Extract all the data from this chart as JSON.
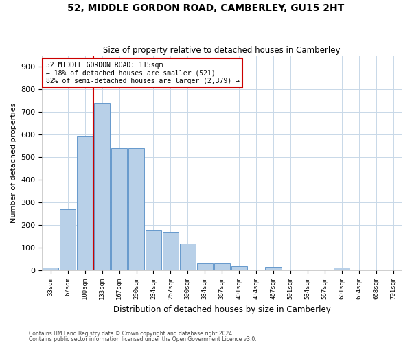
{
  "title": "52, MIDDLE GORDON ROAD, CAMBERLEY, GU15 2HT",
  "subtitle": "Size of property relative to detached houses in Camberley",
  "xlabel": "Distribution of detached houses by size in Camberley",
  "ylabel": "Number of detached properties",
  "bar_labels": [
    "33sqm",
    "67sqm",
    "100sqm",
    "133sqm",
    "167sqm",
    "200sqm",
    "234sqm",
    "267sqm",
    "300sqm",
    "334sqm",
    "367sqm",
    "401sqm",
    "434sqm",
    "467sqm",
    "501sqm",
    "534sqm",
    "567sqm",
    "601sqm",
    "634sqm",
    "668sqm",
    "701sqm"
  ],
  "bar_heights": [
    13,
    270,
    595,
    740,
    540,
    540,
    175,
    170,
    120,
    30,
    30,
    20,
    0,
    15,
    0,
    0,
    0,
    12,
    0,
    0,
    0
  ],
  "bar_color": "#b8d0e8",
  "bar_edgecolor": "#6699cc",
  "bar_linewidth": 0.7,
  "vline_color": "#cc0000",
  "annotation_text": "52 MIDDLE GORDON ROAD: 115sqm\n← 18% of detached houses are smaller (521)\n82% of semi-detached houses are larger (2,379) →",
  "annotation_box_color": "#ffffff",
  "annotation_box_edgecolor": "#cc0000",
  "ylim": [
    0,
    950
  ],
  "yticks": [
    0,
    100,
    200,
    300,
    400,
    500,
    600,
    700,
    800,
    900
  ],
  "footer1": "Contains HM Land Registry data © Crown copyright and database right 2024.",
  "footer2": "Contains public sector information licensed under the Open Government Licence v3.0.",
  "bg_color": "#ffffff",
  "grid_color": "#c8d8e8",
  "fig_width": 6.0,
  "fig_height": 5.0,
  "dpi": 100
}
